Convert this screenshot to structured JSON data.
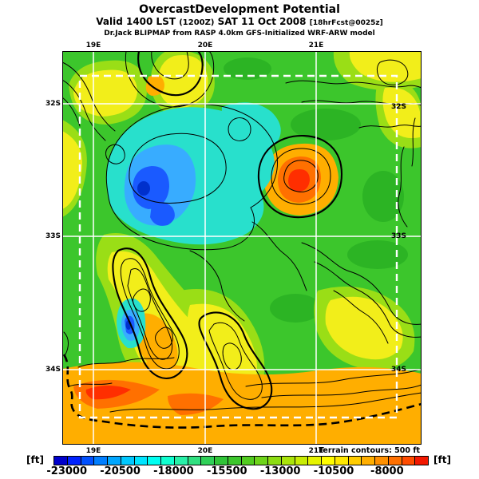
{
  "header": {
    "title": "OvercastDevelopment Potential",
    "valid_prefix": "Valid 1400 LST",
    "valid_zulu": "(1200Z)",
    "valid_date": "SAT 11 Oct 2008",
    "valid_fcst": "[18hrFcst@0025z]",
    "model_line": "Dr.Jack BLIPMAP from RASP 4.0km GFS-Initialized WRF-ARW model"
  },
  "map": {
    "lon_labels": [
      "19E",
      "20E",
      "21E"
    ],
    "lat_labels": [
      "32S",
      "33S",
      "34S"
    ],
    "terrain_note": "Terrain contours: 500 ft",
    "palette": {
      "base_green": "#3cc62c",
      "yellow_green": "#9ade16",
      "yellow": "#f2ee1a",
      "orange": "#ffae00",
      "red_orange": "#ff7000",
      "red": "#ff2e00",
      "cyan": "#28e0cc",
      "light_blue": "#38acff",
      "blue": "#1a5aff",
      "dark_blue": "#0030cc",
      "grid_white": "#ffffff",
      "contour_black": "#000000"
    }
  },
  "colorbar": {
    "unit_left": "[ft]",
    "unit_right": "[ft]",
    "tick_labels": [
      "-23000",
      "-20500",
      "-18000",
      "-15500",
      "-13000",
      "-10500",
      "-8000"
    ],
    "colors": [
      "#0000cc",
      "#0022ff",
      "#0050ff",
      "#007eff",
      "#00a6ff",
      "#00c8ff",
      "#00e4ff",
      "#00fff2",
      "#10ffd0",
      "#28f0a8",
      "#30e080",
      "#30d058",
      "#30c438",
      "#3cc62c",
      "#52cc20",
      "#6ed41a",
      "#8cdc12",
      "#aae40a",
      "#c8ec04",
      "#e6f400",
      "#fffc00",
      "#ffe800",
      "#ffcc00",
      "#ffae00",
      "#ff9000",
      "#ff7000",
      "#ff4c00",
      "#f21800"
    ]
  }
}
